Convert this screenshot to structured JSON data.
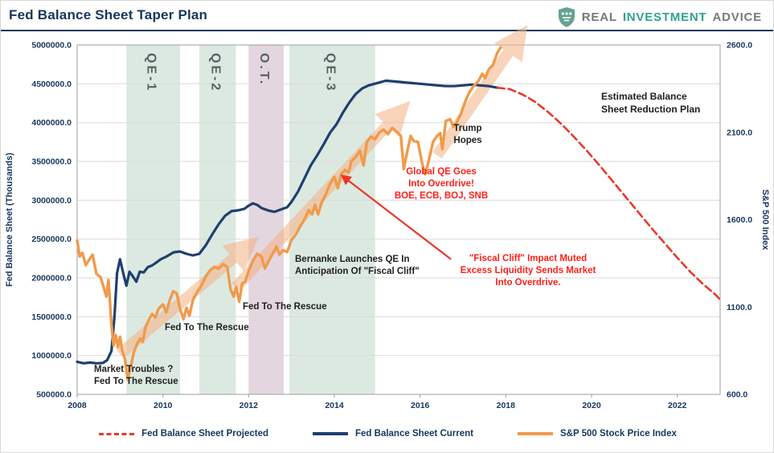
{
  "header": {
    "title": "Fed Balance Sheet Taper Plan",
    "brand": {
      "word1": "REAL",
      "word2": "INVESTMENT",
      "word3": "ADVICE"
    }
  },
  "colors": {
    "navy": "#17365D",
    "current_navy": "#1F3F6E",
    "projected_red": "#E8392B",
    "sp500_orange": "#F09A4B",
    "big_arrow_orange": "#F4B183",
    "annotation_red": "#FF1F16",
    "qe_band_green": "#DCE9E1",
    "ot_band_purple": "#E4D6DF",
    "brand_teal": "#2FA38E",
    "brand_gray": "#77787B"
  },
  "chart_data": {
    "type": "line",
    "title": "Fed Balance Sheet Taper Plan",
    "x_axis": {
      "range": [
        2008,
        2023
      ],
      "ticks": [
        "2008",
        "2010",
        "2012",
        "2014",
        "2016",
        "2018",
        "2020",
        "2022"
      ]
    },
    "y_left": {
      "label": "Fed Balance Sheet (Thousands)",
      "range": [
        500000,
        5000000
      ],
      "ticks": [
        "5000000.0",
        "4500000.0",
        "4000000.0",
        "3500000.0",
        "3000000.0",
        "2500000.0",
        "2000000.0",
        "1500000.0",
        "1000000.0",
        "500000.0"
      ]
    },
    "y_right": {
      "label": "S&P 500 Index",
      "range": [
        600,
        2600
      ],
      "ticks": [
        "2600.0",
        "2100.0",
        "1600.0",
        "1100.0",
        "600.0"
      ]
    },
    "bands": [
      {
        "label": "QE-1",
        "x_start": 2009.15,
        "x_end": 2010.4,
        "color": "#DCE9E1"
      },
      {
        "label": "QE-2",
        "x_start": 2010.85,
        "x_end": 2011.7,
        "color": "#DCE9E1"
      },
      {
        "label": "O.T.",
        "x_start": 2012.0,
        "x_end": 2012.82,
        "color": "#E4D6DF"
      },
      {
        "label": "QE-3",
        "x_start": 2012.95,
        "x_end": 2014.95,
        "color": "#DCE9E1"
      }
    ],
    "series": [
      {
        "name": "Fed Balance Sheet Current",
        "axis": "left",
        "color": "#1F3F6E",
        "style": "solid",
        "width": 3.2,
        "points": [
          [
            2008,
            920000
          ],
          [
            2008.15,
            900000
          ],
          [
            2008.3,
            910000
          ],
          [
            2008.45,
            900000
          ],
          [
            2008.6,
            905000
          ],
          [
            2008.7,
            940000
          ],
          [
            2008.8,
            1060000
          ],
          [
            2008.87,
            1500000
          ],
          [
            2008.93,
            2060000
          ],
          [
            2009,
            2240000
          ],
          [
            2009.08,
            2050000
          ],
          [
            2009.15,
            1900000
          ],
          [
            2009.22,
            2080000
          ],
          [
            2009.3,
            2020000
          ],
          [
            2009.38,
            1950000
          ],
          [
            2009.46,
            2080000
          ],
          [
            2009.55,
            2070000
          ],
          [
            2009.65,
            2140000
          ],
          [
            2009.75,
            2160000
          ],
          [
            2009.85,
            2200000
          ],
          [
            2009.95,
            2240000
          ],
          [
            2010.1,
            2280000
          ],
          [
            2010.25,
            2330000
          ],
          [
            2010.4,
            2340000
          ],
          [
            2010.55,
            2310000
          ],
          [
            2010.7,
            2290000
          ],
          [
            2010.85,
            2310000
          ],
          [
            2011,
            2420000
          ],
          [
            2011.15,
            2560000
          ],
          [
            2011.3,
            2690000
          ],
          [
            2011.45,
            2800000
          ],
          [
            2011.6,
            2860000
          ],
          [
            2011.75,
            2870000
          ],
          [
            2011.9,
            2890000
          ],
          [
            2012,
            2930000
          ],
          [
            2012.1,
            2960000
          ],
          [
            2012.2,
            2940000
          ],
          [
            2012.3,
            2900000
          ],
          [
            2012.45,
            2870000
          ],
          [
            2012.6,
            2850000
          ],
          [
            2012.75,
            2880000
          ],
          [
            2012.9,
            2910000
          ],
          [
            2013,
            2980000
          ],
          [
            2013.15,
            3110000
          ],
          [
            2013.3,
            3280000
          ],
          [
            2013.45,
            3450000
          ],
          [
            2013.6,
            3580000
          ],
          [
            2013.75,
            3720000
          ],
          [
            2013.9,
            3870000
          ],
          [
            2014.05,
            3980000
          ],
          [
            2014.2,
            4130000
          ],
          [
            2014.35,
            4260000
          ],
          [
            2014.5,
            4370000
          ],
          [
            2014.65,
            4440000
          ],
          [
            2014.8,
            4480000
          ],
          [
            2015,
            4510000
          ],
          [
            2015.2,
            4540000
          ],
          [
            2015.4,
            4530000
          ],
          [
            2015.6,
            4520000
          ],
          [
            2015.8,
            4510000
          ],
          [
            2016,
            4500000
          ],
          [
            2016.2,
            4490000
          ],
          [
            2016.4,
            4480000
          ],
          [
            2016.6,
            4470000
          ],
          [
            2016.8,
            4470000
          ],
          [
            2017,
            4480000
          ],
          [
            2017.2,
            4490000
          ],
          [
            2017.4,
            4480000
          ],
          [
            2017.6,
            4470000
          ],
          [
            2017.8,
            4450000
          ]
        ]
      },
      {
        "name": "S&P 500 Stock Price Index",
        "axis": "right",
        "color": "#F09A4B",
        "style": "solid",
        "width": 3.4,
        "points": [
          [
            2008,
            1480
          ],
          [
            2008.06,
            1390
          ],
          [
            2008.12,
            1410
          ],
          [
            2008.2,
            1340
          ],
          [
            2008.28,
            1370
          ],
          [
            2008.36,
            1400
          ],
          [
            2008.45,
            1290
          ],
          [
            2008.55,
            1270
          ],
          [
            2008.62,
            1210
          ],
          [
            2008.68,
            1160
          ],
          [
            2008.73,
            1255
          ],
          [
            2008.8,
            1000
          ],
          [
            2008.85,
            880
          ],
          [
            2008.9,
            940
          ],
          [
            2008.95,
            870
          ],
          [
            2009,
            930
          ],
          [
            2009.05,
            850
          ],
          [
            2009.12,
            800
          ],
          [
            2009.18,
            683
          ],
          [
            2009.25,
            760
          ],
          [
            2009.32,
            840
          ],
          [
            2009.4,
            890
          ],
          [
            2009.47,
            920
          ],
          [
            2009.53,
            900
          ],
          [
            2009.6,
            990
          ],
          [
            2009.68,
            1030
          ],
          [
            2009.75,
            1060
          ],
          [
            2009.82,
            1040
          ],
          [
            2009.9,
            1090
          ],
          [
            2010,
            1115
          ],
          [
            2010.08,
            1070
          ],
          [
            2010.16,
            1140
          ],
          [
            2010.24,
            1190
          ],
          [
            2010.32,
            1180
          ],
          [
            2010.4,
            1090
          ],
          [
            2010.48,
            1030
          ],
          [
            2010.55,
            1095
          ],
          [
            2010.62,
            1050
          ],
          [
            2010.7,
            1140
          ],
          [
            2010.8,
            1185
          ],
          [
            2010.9,
            1225
          ],
          [
            2011,
            1275
          ],
          [
            2011.1,
            1310
          ],
          [
            2011.2,
            1330
          ],
          [
            2011.3,
            1320
          ],
          [
            2011.4,
            1345
          ],
          [
            2011.5,
            1330
          ],
          [
            2011.58,
            1200
          ],
          [
            2011.65,
            1160
          ],
          [
            2011.71,
            1215
          ],
          [
            2011.78,
            1130
          ],
          [
            2011.85,
            1235
          ],
          [
            2011.92,
            1245
          ],
          [
            2012,
            1305
          ],
          [
            2012.1,
            1365
          ],
          [
            2012.2,
            1405
          ],
          [
            2012.3,
            1390
          ],
          [
            2012.38,
            1320
          ],
          [
            2012.46,
            1360
          ],
          [
            2012.55,
            1400
          ],
          [
            2012.65,
            1445
          ],
          [
            2012.72,
            1400
          ],
          [
            2012.8,
            1425
          ],
          [
            2012.9,
            1415
          ],
          [
            2013,
            1485
          ],
          [
            2013.1,
            1515
          ],
          [
            2013.2,
            1560
          ],
          [
            2013.3,
            1600
          ],
          [
            2013.4,
            1655
          ],
          [
            2013.48,
            1630
          ],
          [
            2013.55,
            1685
          ],
          [
            2013.62,
            1630
          ],
          [
            2013.7,
            1695
          ],
          [
            2013.8,
            1745
          ],
          [
            2013.9,
            1805
          ],
          [
            2014,
            1845
          ],
          [
            2014.08,
            1780
          ],
          [
            2014.16,
            1860
          ],
          [
            2014.25,
            1885
          ],
          [
            2014.33,
            1870
          ],
          [
            2014.4,
            1935
          ],
          [
            2014.5,
            1960
          ],
          [
            2014.6,
            1995
          ],
          [
            2014.68,
            1910
          ],
          [
            2014.76,
            2045
          ],
          [
            2014.85,
            2075
          ],
          [
            2014.95,
            2060
          ],
          [
            2015.05,
            2100
          ],
          [
            2015.15,
            2115
          ],
          [
            2015.25,
            2090
          ],
          [
            2015.35,
            2125
          ],
          [
            2015.45,
            2105
          ],
          [
            2015.55,
            2080
          ],
          [
            2015.62,
            1890
          ],
          [
            2015.7,
            1990
          ],
          [
            2015.78,
            2080
          ],
          [
            2015.85,
            2050
          ],
          [
            2015.95,
            2045
          ],
          [
            2016.05,
            1920
          ],
          [
            2016.12,
            1860
          ],
          [
            2016.2,
            1935
          ],
          [
            2016.3,
            2045
          ],
          [
            2016.4,
            2080
          ],
          [
            2016.47,
            2095
          ],
          [
            2016.52,
            2005
          ],
          [
            2016.6,
            2165
          ],
          [
            2016.7,
            2175
          ],
          [
            2016.78,
            2130
          ],
          [
            2016.85,
            2155
          ],
          [
            2016.95,
            2205
          ],
          [
            2017.05,
            2275
          ],
          [
            2017.15,
            2330
          ],
          [
            2017.25,
            2365
          ],
          [
            2017.35,
            2390
          ],
          [
            2017.45,
            2435
          ],
          [
            2017.52,
            2410
          ],
          [
            2017.6,
            2460
          ],
          [
            2017.7,
            2485
          ],
          [
            2017.8,
            2555
          ],
          [
            2017.88,
            2585
          ]
        ]
      },
      {
        "name": "Fed Balance Sheet Projected",
        "axis": "left",
        "color": "#E8392B",
        "style": "dashed",
        "width": 2.6,
        "points": [
          [
            2017.8,
            4450000
          ],
          [
            2018.1,
            4430000
          ],
          [
            2018.4,
            4360000
          ],
          [
            2018.7,
            4260000
          ],
          [
            2019,
            4130000
          ],
          [
            2019.3,
            3980000
          ],
          [
            2019.6,
            3810000
          ],
          [
            2019.9,
            3630000
          ],
          [
            2020.2,
            3440000
          ],
          [
            2020.5,
            3240000
          ],
          [
            2020.8,
            3040000
          ],
          [
            2021.1,
            2840000
          ],
          [
            2021.4,
            2640000
          ],
          [
            2021.7,
            2450000
          ],
          [
            2022,
            2260000
          ],
          [
            2022.3,
            2080000
          ],
          [
            2022.6,
            1920000
          ],
          [
            2022.9,
            1780000
          ],
          [
            2023,
            1720000
          ]
        ]
      }
    ],
    "arrows": [
      {
        "from": [
          2009.0,
          1020000
        ],
        "to": [
          2011.94,
          2390000
        ]
      },
      {
        "from": [
          2011.7,
          1880000
        ],
        "to": [
          2015.5,
          4120000
        ]
      },
      {
        "from": [
          2016.4,
          3580000
        ],
        "to": [
          2018.28,
          5080000
        ]
      }
    ],
    "pointer_arrow": {
      "from": [
        2016.72,
        2240000
      ],
      "to": [
        2014.24,
        3290000
      ],
      "color": "#E8392B"
    },
    "annotations": {
      "market_troubles": "Market Troubles ?\nFed To The Rescue",
      "fed_rescue_1": "Fed To The Rescue",
      "fed_rescue_2": "Fed To The Rescue",
      "bernanke": "Bernanke Launches QE In\nAnticipation Of \"Fiscal Cliff\"",
      "global_qe": "Global QE Goes\nInto Overdrive!\nBOE, ECB, BOJ, SNB",
      "fiscal_cliff": "\"Fiscal Cliff\" Impact Muted\nExcess Liquidity Sends Market\nInto Overdrive.",
      "trump_hopes": "Trump\nHopes",
      "estimated_plan": "Estimated Balance\nSheet Reduction Plan"
    }
  },
  "legend": {
    "items": [
      {
        "label": "Fed Balance Sheet Projected",
        "color": "#E8392B",
        "style": "dashed"
      },
      {
        "label": "Fed Balance Sheet Current",
        "color": "#1F3F6E",
        "style": "solid"
      },
      {
        "label": "S&P 500 Stock Price Index",
        "color": "#F09A4B",
        "style": "solid"
      }
    ]
  }
}
